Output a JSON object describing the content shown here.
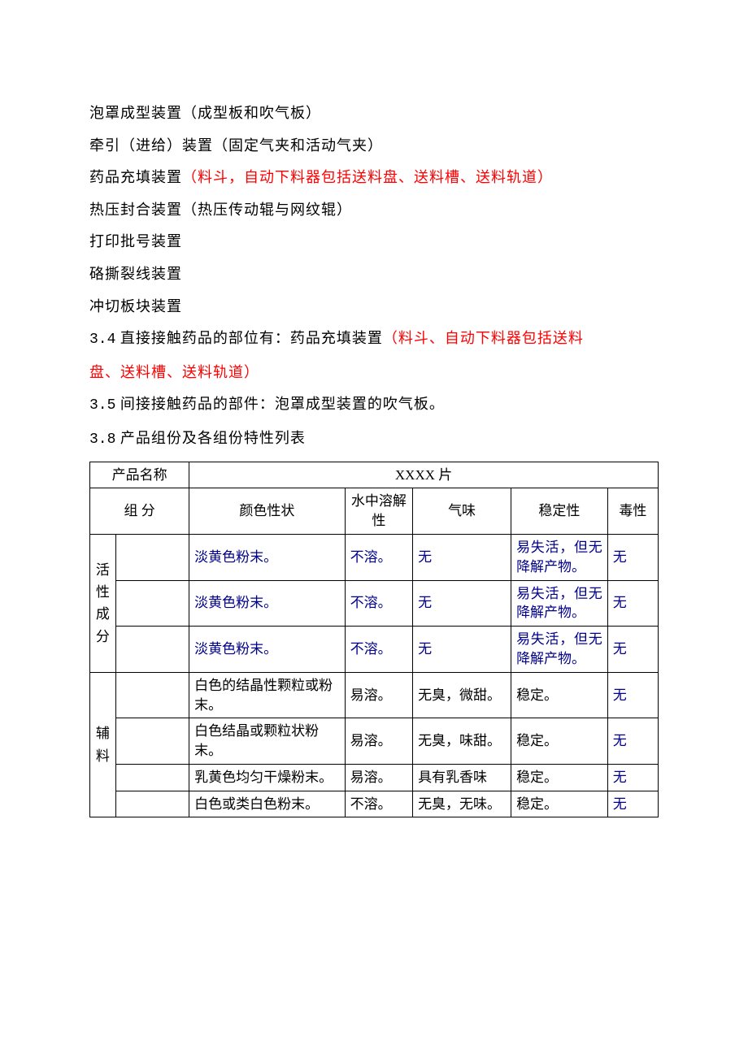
{
  "lines": {
    "l1a": "泡罩成型装置（成型板和吹气板）",
    "l2a": "牵引（进给）装置（固定气夹和活动气夹）",
    "l3a": "药品充填装置",
    "l3b": "（料斗，自动下料器包括送料盘、送料槽、送料轨道）",
    "l4a": "热压封合装置（热压传动辊与网纹辊）",
    "l5a": "打印批号装置",
    "l6a": "硌撕裂线装置",
    "l7a": "冲切板块装置",
    "s34n": "3.4",
    "s34a": "  直接接触药品的部位有：药品充填装置",
    "s34b": "（料斗、自动下料器包括送料",
    "s34c": "盘、送料槽、送料轨道）",
    "s35n": "3.5",
    "s35a": "  间接接触药品的部件：泡罩成型装置的吹气板。",
    "s38n": "3.8",
    "s38a": "  产品组份及各组份特性列表"
  },
  "table": {
    "hdr_name": "产品名称",
    "hdr_product": "XXXX 片",
    "hdr_comp": "组 分",
    "hdr_color": "颜色性状",
    "hdr_sol": "水中溶解性",
    "hdr_smell": "气味",
    "hdr_stab": "稳定性",
    "hdr_tox": "毒性",
    "group_active_1": "活",
    "group_active_2": "性",
    "group_active_3": "成",
    "group_active_4": "分",
    "group_aux_1": "辅",
    "group_aux_2": "料",
    "rows": [
      {
        "color": "淡黄色粉末。",
        "sol": "不溶。",
        "smell": "无",
        "stab": "易失活，但无降解产物。",
        "tox": "无"
      },
      {
        "color": "淡黄色粉末。",
        "sol": "不溶。",
        "smell": "无",
        "stab": "易失活，但无降解产物。",
        "tox": "无"
      },
      {
        "color": "淡黄色粉末。",
        "sol": "不溶。",
        "smell": "无",
        "stab": "易失活，但无降解产物。",
        "tox": "无"
      },
      {
        "color": "白色的结晶性颗粒或粉末。",
        "sol": "易溶。",
        "smell": "无臭，微甜。",
        "stab": "稳定。",
        "tox": "无"
      },
      {
        "color": "白色结晶或颗粒状粉末。",
        "sol": "易溶。",
        "smell": "无臭，味甜。",
        "stab": "稳定。",
        "tox": "无"
      },
      {
        "color": "乳黄色均匀干燥粉末。",
        "sol": "易溶。",
        "smell": "具有乳香味",
        "stab": "稳定。",
        "tox": "无"
      },
      {
        "color": "白色或类白色粉末。",
        "sol": "不溶。",
        "smell": "无臭，无味。",
        "stab": "稳定。",
        "tox": "无"
      }
    ]
  },
  "colors": {
    "black": "#000000",
    "red": "#ff0000",
    "blue": "#00008b",
    "bg": "#ffffff"
  }
}
